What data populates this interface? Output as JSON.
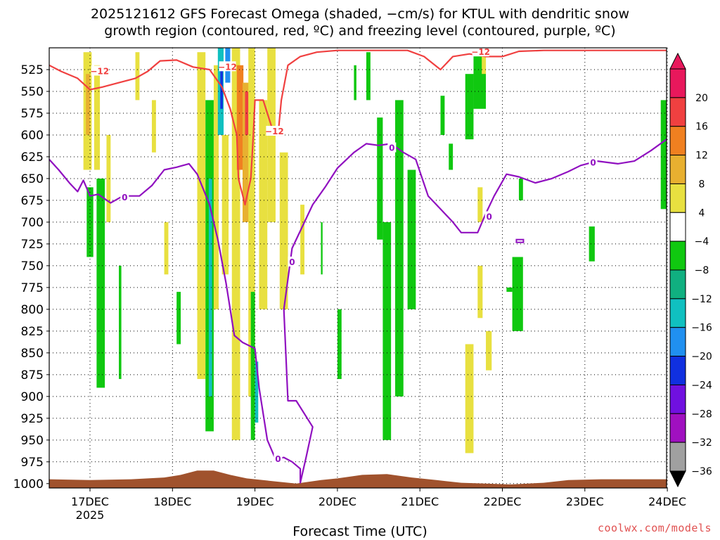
{
  "chart_data": {
    "type": "heatmap",
    "title_line1": "2025121612 GFS Forecast Omega (shaded, −cm/s) for KTUL with dendritic snow",
    "title_line2": "growth region (contoured, red, ºC) and freezing level (contoured, purple, ºC)",
    "xlabel": "Forecast Time (UTC)",
    "x_ticks": [
      "17DEC",
      "18DEC",
      "19DEC",
      "20DEC",
      "21DEC",
      "22DEC",
      "23DEC",
      "24DEC"
    ],
    "x_year_label": "2025",
    "x_range_days": [
      16.5,
      24.0
    ],
    "y_ticks": [
      525,
      550,
      575,
      600,
      625,
      650,
      675,
      700,
      725,
      750,
      775,
      800,
      825,
      850,
      875,
      900,
      925,
      950,
      975,
      1000
    ],
    "y_range": [
      500,
      1005
    ],
    "grid": true,
    "colorbar": {
      "labels": [
        "20",
        "16",
        "12",
        "8",
        "4",
        "−4",
        "−8",
        "−12",
        "−16",
        "−20",
        "−24",
        "−28",
        "−32",
        "−36"
      ],
      "bands": [
        {
          "color": "#e8185c"
        },
        {
          "color": "#f04040"
        },
        {
          "color": "#f08020"
        },
        {
          "color": "#e8b030"
        },
        {
          "color": "#e8e040"
        },
        {
          "color": "#ffffff"
        },
        {
          "color": "#10c810"
        },
        {
          "color": "#10b080"
        },
        {
          "color": "#10c0c0"
        },
        {
          "color": "#2090f0"
        },
        {
          "color": "#1030e0"
        },
        {
          "color": "#7010e0"
        },
        {
          "color": "#a010c0"
        },
        {
          "color": "#a0a0a0"
        }
      ]
    },
    "freezing_level_label": "0",
    "dgz_label": "−12",
    "freezing_level": [
      {
        "t": 16.5,
        "p": 628
      },
      {
        "t": 16.62,
        "p": 640
      },
      {
        "t": 16.75,
        "p": 655
      },
      {
        "t": 16.85,
        "p": 665
      },
      {
        "t": 16.92,
        "p": 652
      },
      {
        "t": 17.0,
        "p": 670
      },
      {
        "t": 17.1,
        "p": 668
      },
      {
        "t": 17.25,
        "p": 678
      },
      {
        "t": 17.4,
        "p": 670
      },
      {
        "t": 17.6,
        "p": 670
      },
      {
        "t": 17.75,
        "p": 658
      },
      {
        "t": 17.9,
        "p": 640
      },
      {
        "t": 18.05,
        "p": 637
      },
      {
        "t": 18.2,
        "p": 633
      },
      {
        "t": 18.3,
        "p": 645
      },
      {
        "t": 18.45,
        "p": 680
      },
      {
        "t": 18.55,
        "p": 720
      },
      {
        "t": 18.65,
        "p": 770
      },
      {
        "t": 18.75,
        "p": 830
      },
      {
        "t": 18.85,
        "p": 838
      },
      {
        "t": 19.0,
        "p": 845
      },
      {
        "t": 19.05,
        "p": 890
      },
      {
        "t": 19.15,
        "p": 950
      },
      {
        "t": 19.25,
        "p": 972
      },
      {
        "t": 19.35,
        "p": 970
      },
      {
        "t": 19.45,
        "p": 975
      },
      {
        "t": 19.55,
        "p": 983
      },
      {
        "t": 19.55,
        "p": 999
      },
      {
        "t": 19.62,
        "p": 970
      },
      {
        "t": 19.7,
        "p": 935
      },
      {
        "t": 19.6,
        "p": 920
      },
      {
        "t": 19.5,
        "p": 905
      },
      {
        "t": 19.4,
        "p": 905
      },
      {
        "t": 19.35,
        "p": 800
      },
      {
        "t": 19.45,
        "p": 730
      },
      {
        "t": 19.6,
        "p": 700
      },
      {
        "t": 19.7,
        "p": 680
      },
      {
        "t": 19.85,
        "p": 660
      },
      {
        "t": 20.0,
        "p": 638
      },
      {
        "t": 20.2,
        "p": 620
      },
      {
        "t": 20.35,
        "p": 610
      },
      {
        "t": 20.5,
        "p": 612
      },
      {
        "t": 20.65,
        "p": 610
      },
      {
        "t": 20.8,
        "p": 620
      },
      {
        "t": 20.95,
        "p": 628
      },
      {
        "t": 21.1,
        "p": 670
      },
      {
        "t": 21.25,
        "p": 685
      },
      {
        "t": 21.4,
        "p": 700
      },
      {
        "t": 21.5,
        "p": 712
      },
      {
        "t": 21.7,
        "p": 712
      },
      {
        "t": 21.8,
        "p": 690
      },
      {
        "t": 21.9,
        "p": 670
      },
      {
        "t": 22.05,
        "p": 645
      },
      {
        "t": 22.2,
        "p": 648
      },
      {
        "t": 22.4,
        "p": 655
      },
      {
        "t": 22.6,
        "p": 650
      },
      {
        "t": 22.8,
        "p": 642
      },
      {
        "t": 22.95,
        "p": 635
      },
      {
        "t": 23.15,
        "p": 630
      },
      {
        "t": 23.4,
        "p": 633
      },
      {
        "t": 23.6,
        "p": 630
      },
      {
        "t": 23.8,
        "p": 618
      },
      {
        "t": 24.0,
        "p": 605
      }
    ],
    "dgz_contour": [
      {
        "t": 16.5,
        "p": 520
      },
      {
        "t": 16.65,
        "p": 527
      },
      {
        "t": 16.85,
        "p": 535
      },
      {
        "t": 17.0,
        "p": 548
      },
      {
        "t": 17.15,
        "p": 545
      },
      {
        "t": 17.35,
        "p": 540
      },
      {
        "t": 17.55,
        "p": 535
      },
      {
        "t": 17.7,
        "p": 527
      },
      {
        "t": 17.85,
        "p": 515
      },
      {
        "t": 18.05,
        "p": 514
      },
      {
        "t": 18.25,
        "p": 522
      },
      {
        "t": 18.45,
        "p": 525
      },
      {
        "t": 18.6,
        "p": 545
      },
      {
        "t": 18.7,
        "p": 570
      },
      {
        "t": 18.78,
        "p": 600
      },
      {
        "t": 18.8,
        "p": 650
      },
      {
        "t": 18.88,
        "p": 680
      },
      {
        "t": 18.95,
        "p": 650
      },
      {
        "t": 18.98,
        "p": 600
      },
      {
        "t": 19.0,
        "p": 560
      },
      {
        "t": 19.1,
        "p": 560
      },
      {
        "t": 19.2,
        "p": 590
      },
      {
        "t": 19.28,
        "p": 600
      },
      {
        "t": 19.32,
        "p": 560
      },
      {
        "t": 19.4,
        "p": 520
      },
      {
        "t": 19.55,
        "p": 510
      },
      {
        "t": 19.75,
        "p": 505
      },
      {
        "t": 20.0,
        "p": 503
      },
      {
        "t": 20.3,
        "p": 503
      },
      {
        "t": 20.6,
        "p": 503
      },
      {
        "t": 20.85,
        "p": 503
      },
      {
        "t": 21.05,
        "p": 510
      },
      {
        "t": 21.25,
        "p": 525
      },
      {
        "t": 21.4,
        "p": 510
      },
      {
        "t": 21.6,
        "p": 507
      },
      {
        "t": 21.8,
        "p": 510
      },
      {
        "t": 22.0,
        "p": 510
      },
      {
        "t": 22.2,
        "p": 504
      },
      {
        "t": 22.5,
        "p": 503
      },
      {
        "t": 23.0,
        "p": 503
      },
      {
        "t": 23.5,
        "p": 503
      },
      {
        "t": 24.0,
        "p": 503
      }
    ],
    "omega_cells": [
      {
        "t0": 16.92,
        "t1": 17.02,
        "p0": 505,
        "p1": 640,
        "v": 6
      },
      {
        "t0": 16.95,
        "t1": 17.0,
        "p0": 530,
        "p1": 600,
        "v": 10
      },
      {
        "t0": 17.05,
        "t1": 17.12,
        "p0": 520,
        "p1": 640,
        "v": 5
      },
      {
        "t0": 16.96,
        "t1": 17.04,
        "p0": 660,
        "p1": 740,
        "v": -6
      },
      {
        "t0": 17.08,
        "t1": 17.18,
        "p0": 650,
        "p1": 890,
        "v": -6
      },
      {
        "t0": 17.2,
        "t1": 17.25,
        "p0": 600,
        "p1": 700,
        "v": 5
      },
      {
        "t0": 17.35,
        "t1": 17.38,
        "p0": 750,
        "p1": 880,
        "v": -6
      },
      {
        "t0": 17.55,
        "t1": 17.6,
        "p0": 505,
        "p1": 560,
        "v": 5
      },
      {
        "t0": 17.75,
        "t1": 17.8,
        "p0": 560,
        "p1": 620,
        "v": 5
      },
      {
        "t0": 17.9,
        "t1": 17.95,
        "p0": 700,
        "p1": 760,
        "v": 5
      },
      {
        "t0": 18.05,
        "t1": 18.1,
        "p0": 780,
        "p1": 840,
        "v": -6
      },
      {
        "t0": 18.3,
        "t1": 18.4,
        "p0": 505,
        "p1": 880,
        "v": 5
      },
      {
        "t0": 18.4,
        "t1": 18.5,
        "p0": 560,
        "p1": 940,
        "v": -6
      },
      {
        "t0": 18.44,
        "t1": 18.48,
        "p0": 650,
        "p1": 900,
        "v": -14
      },
      {
        "t0": 18.5,
        "t1": 18.56,
        "p0": 520,
        "p1": 800,
        "v": 5
      },
      {
        "t0": 18.55,
        "t1": 18.62,
        "p0": 500,
        "p1": 600,
        "v": -14
      },
      {
        "t0": 18.58,
        "t1": 18.61,
        "p0": 520,
        "p1": 570,
        "v": -22
      },
      {
        "t0": 18.64,
        "t1": 18.7,
        "p0": 500,
        "p1": 540,
        "v": -18
      },
      {
        "t0": 18.6,
        "t1": 18.68,
        "p0": 600,
        "p1": 760,
        "v": 6
      },
      {
        "t0": 18.72,
        "t1": 18.82,
        "p0": 500,
        "p1": 950,
        "v": 6
      },
      {
        "t0": 18.78,
        "t1": 18.86,
        "p0": 520,
        "p1": 640,
        "v": 12
      },
      {
        "t0": 18.85,
        "t1": 18.95,
        "p0": 540,
        "p1": 700,
        "v": 10
      },
      {
        "t0": 18.88,
        "t1": 18.92,
        "p0": 550,
        "p1": 600,
        "v": 18
      },
      {
        "t0": 18.92,
        "t1": 19.0,
        "p0": 500,
        "p1": 900,
        "v": 6
      },
      {
        "t0": 18.95,
        "t1": 19.0,
        "p0": 780,
        "p1": 950,
        "v": -6
      },
      {
        "t0": 19.0,
        "t1": 19.04,
        "p0": 860,
        "p1": 930,
        "v": -14
      },
      {
        "t0": 19.05,
        "t1": 19.15,
        "p0": 560,
        "p1": 800,
        "v": 6
      },
      {
        "t0": 19.15,
        "t1": 19.25,
        "p0": 500,
        "p1": 700,
        "v": 5
      },
      {
        "t0": 19.3,
        "t1": 19.4,
        "p0": 620,
        "p1": 800,
        "v": 5
      },
      {
        "t0": 19.55,
        "t1": 19.6,
        "p0": 680,
        "p1": 760,
        "v": 5
      },
      {
        "t0": 19.8,
        "t1": 19.82,
        "p0": 700,
        "p1": 760,
        "v": -6
      },
      {
        "t0": 20.0,
        "t1": 20.05,
        "p0": 800,
        "p1": 880,
        "v": -6
      },
      {
        "t0": 20.2,
        "t1": 20.23,
        "p0": 520,
        "p1": 560,
        "v": -6
      },
      {
        "t0": 20.35,
        "t1": 20.4,
        "p0": 505,
        "p1": 560,
        "v": -6
      },
      {
        "t0": 20.55,
        "t1": 20.65,
        "p0": 700,
        "p1": 950,
        "v": -6
      },
      {
        "t0": 20.7,
        "t1": 20.8,
        "p0": 560,
        "p1": 900,
        "v": -6
      },
      {
        "t0": 20.85,
        "t1": 20.95,
        "p0": 640,
        "p1": 800,
        "v": -6
      },
      {
        "t0": 20.48,
        "t1": 20.55,
        "p0": 580,
        "p1": 720,
        "v": -6
      },
      {
        "t0": 21.25,
        "t1": 21.3,
        "p0": 555,
        "p1": 600,
        "v": -6
      },
      {
        "t0": 21.35,
        "t1": 21.4,
        "p0": 610,
        "p1": 640,
        "v": -6
      },
      {
        "t0": 21.55,
        "t1": 21.65,
        "p0": 530,
        "p1": 605,
        "v": -6
      },
      {
        "t0": 21.65,
        "t1": 21.8,
        "p0": 505,
        "p1": 570,
        "v": -6
      },
      {
        "t0": 21.75,
        "t1": 21.8,
        "p0": 505,
        "p1": 530,
        "v": 5
      },
      {
        "t0": 21.7,
        "t1": 21.76,
        "p0": 660,
        "p1": 700,
        "v": 5
      },
      {
        "t0": 21.7,
        "t1": 21.76,
        "p0": 750,
        "p1": 810,
        "v": 5
      },
      {
        "t0": 21.55,
        "t1": 21.65,
        "p0": 840,
        "p1": 965,
        "v": 5
      },
      {
        "t0": 21.8,
        "t1": 21.87,
        "p0": 825,
        "p1": 870,
        "v": 5
      },
      {
        "t0": 22.2,
        "t1": 22.25,
        "p0": 650,
        "p1": 675,
        "v": -6
      },
      {
        "t0": 22.05,
        "t1": 22.12,
        "p0": 775,
        "p1": 780,
        "v": -6
      },
      {
        "t0": 22.12,
        "t1": 22.25,
        "p0": 740,
        "p1": 825,
        "v": -6
      },
      {
        "t0": 23.05,
        "t1": 23.12,
        "p0": 705,
        "p1": 745,
        "v": -6
      },
      {
        "t0": 23.92,
        "t1": 24.0,
        "p0": 560,
        "p1": 685,
        "v": -6
      }
    ],
    "terrain": [
      {
        "t": 16.5,
        "p": 995
      },
      {
        "t": 17.0,
        "p": 996
      },
      {
        "t": 17.5,
        "p": 995
      },
      {
        "t": 17.9,
        "p": 993
      },
      {
        "t": 18.1,
        "p": 990
      },
      {
        "t": 18.3,
        "p": 985
      },
      {
        "t": 18.5,
        "p": 985
      },
      {
        "t": 18.7,
        "p": 990
      },
      {
        "t": 18.9,
        "p": 994
      },
      {
        "t": 19.2,
        "p": 997
      },
      {
        "t": 19.5,
        "p": 1000
      },
      {
        "t": 19.8,
        "p": 996
      },
      {
        "t": 20.0,
        "p": 994
      },
      {
        "t": 20.3,
        "p": 990
      },
      {
        "t": 20.6,
        "p": 989
      },
      {
        "t": 20.9,
        "p": 993
      },
      {
        "t": 21.2,
        "p": 996
      },
      {
        "t": 21.5,
        "p": 999
      },
      {
        "t": 21.8,
        "p": 1000
      },
      {
        "t": 22.1,
        "p": 1001
      },
      {
        "t": 22.5,
        "p": 999
      },
      {
        "t": 22.8,
        "p": 996
      },
      {
        "t": 23.2,
        "p": 995
      },
      {
        "t": 23.6,
        "p": 995
      },
      {
        "t": 24.0,
        "p": 995
      }
    ],
    "credit": "coolwx.com/models"
  }
}
